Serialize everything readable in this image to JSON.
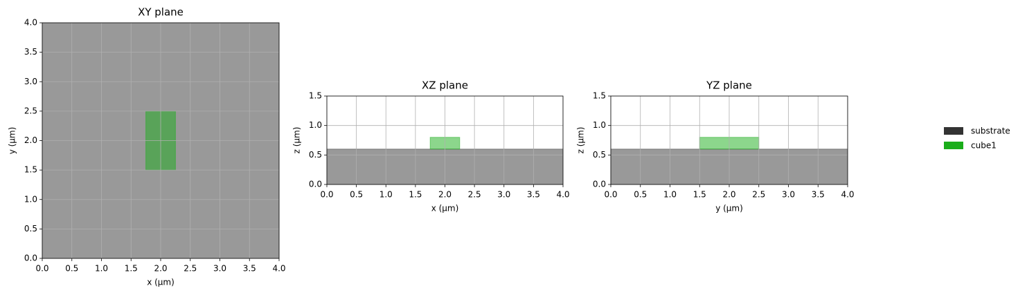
{
  "chart_data": [
    {
      "type": "region",
      "title": "XY plane",
      "xlabel": "x (µm)",
      "ylabel": "y (µm)",
      "xlim": [
        0,
        4
      ],
      "ylim": [
        0,
        4
      ],
      "xticks": [
        {
          "value": 0,
          "label": "0.0"
        },
        0.5,
        {
          "value": 1,
          "label": "1.0"
        },
        1.5,
        {
          "value": 2,
          "label": "2.0"
        },
        2.5,
        {
          "value": 3,
          "label": "3.0"
        },
        3.5,
        {
          "value": 4,
          "label": "4.0"
        }
      ],
      "yticks": [
        {
          "value": 0,
          "label": "0.0"
        },
        0.5,
        {
          "value": 1,
          "label": "1.0"
        },
        1.5,
        {
          "value": 2,
          "label": "2.0"
        },
        2.5,
        {
          "value": 3,
          "label": "3.0"
        },
        3.5,
        {
          "value": 4,
          "label": "4.0"
        }
      ],
      "grid": true,
      "series": [
        {
          "name": "substrate",
          "color": "#333333",
          "alpha": 0.5,
          "x": [
            0,
            4
          ],
          "y": [
            0,
            4
          ]
        },
        {
          "name": "cube1",
          "color": "#1aad1a",
          "alpha": 0.5,
          "x": [
            1.75,
            2.25
          ],
          "y": [
            1.5,
            2.5
          ]
        }
      ]
    },
    {
      "type": "region",
      "title": "XZ plane",
      "xlabel": "x (µm)",
      "ylabel": "z (µm)",
      "xlim": [
        0,
        4
      ],
      "ylim": [
        0,
        1.5
      ],
      "xticks": [
        {
          "value": 0,
          "label": "0.0"
        },
        0.5,
        {
          "value": 1,
          "label": "1.0"
        },
        1.5,
        {
          "value": 2,
          "label": "2.0"
        },
        2.5,
        {
          "value": 3,
          "label": "3.0"
        },
        3.5,
        {
          "value": 4,
          "label": "4.0"
        }
      ],
      "yticks": [
        {
          "value": 0,
          "label": "0.0"
        },
        0.5,
        {
          "value": 1,
          "label": "1.0"
        },
        1.5
      ],
      "grid": true,
      "series": [
        {
          "name": "substrate",
          "color": "#333333",
          "alpha": 0.5,
          "x": [
            0,
            4
          ],
          "y": [
            0,
            0.6
          ]
        },
        {
          "name": "cube1",
          "color": "#1aad1a",
          "alpha": 0.5,
          "x": [
            1.75,
            2.25
          ],
          "y": [
            0.6,
            0.8
          ]
        }
      ]
    },
    {
      "type": "region",
      "title": "YZ plane",
      "xlabel": "y (µm)",
      "ylabel": "z (µm)",
      "xlim": [
        0,
        4
      ],
      "ylim": [
        0,
        1.5
      ],
      "xticks": [
        {
          "value": 0,
          "label": "0.0"
        },
        0.5,
        {
          "value": 1,
          "label": "1.0"
        },
        1.5,
        {
          "value": 2,
          "label": "2.0"
        },
        2.5,
        {
          "value": 3,
          "label": "3.0"
        },
        3.5,
        {
          "value": 4,
          "label": "4.0"
        }
      ],
      "yticks": [
        {
          "value": 0,
          "label": "0.0"
        },
        0.5,
        {
          "value": 1,
          "label": "1.0"
        },
        1.5
      ],
      "grid": true,
      "series": [
        {
          "name": "substrate",
          "color": "#333333",
          "alpha": 0.5,
          "x": [
            0,
            4
          ],
          "y": [
            0,
            0.6
          ]
        },
        {
          "name": "cube1",
          "color": "#1aad1a",
          "alpha": 0.5,
          "x": [
            1.5,
            2.5
          ],
          "y": [
            0.6,
            0.8
          ]
        }
      ]
    }
  ]
}
